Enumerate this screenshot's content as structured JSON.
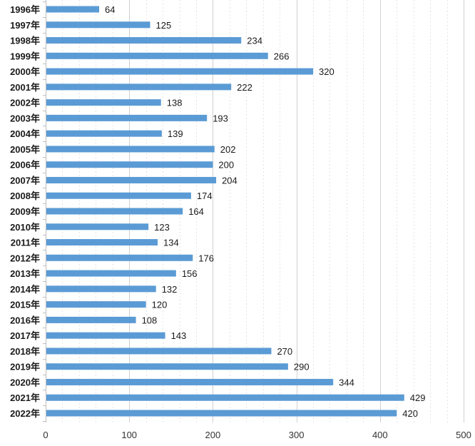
{
  "chart_data": {
    "type": "bar",
    "orientation": "horizontal",
    "title": "",
    "xlabel": "",
    "ylabel": "",
    "xlim": [
      0,
      500
    ],
    "x_ticks": [
      "0",
      "100",
      "200",
      "300",
      "400",
      "500"
    ],
    "grid": true,
    "bar_color": "#5B9BD5",
    "categories": [
      "1996年",
      "1997年",
      "1998年",
      "1999年",
      "2000年",
      "2001年",
      "2002年",
      "2003年",
      "2004年",
      "2005年",
      "2006年",
      "2007年",
      "2008年",
      "2009年",
      "2010年",
      "2011年",
      "2012年",
      "2013年",
      "2014年",
      "2015年",
      "2016年",
      "2017年",
      "2018年",
      "2019年",
      "2020年",
      "2021年",
      "2022年"
    ],
    "values": [
      64,
      125,
      234,
      266,
      320,
      222,
      138,
      193,
      139,
      202,
      200,
      204,
      174,
      164,
      123,
      134,
      176,
      156,
      132,
      120,
      108,
      143,
      270,
      290,
      344,
      429,
      420
    ],
    "value_labels": [
      "64",
      "125",
      "234",
      "266",
      "320",
      "222",
      "138",
      "193",
      "139",
      "202",
      "200",
      "204",
      "174",
      "164",
      "123",
      "134",
      "176",
      "156",
      "132",
      "120",
      "108",
      "143",
      "270",
      "290",
      "344",
      "429",
      "420"
    ]
  }
}
